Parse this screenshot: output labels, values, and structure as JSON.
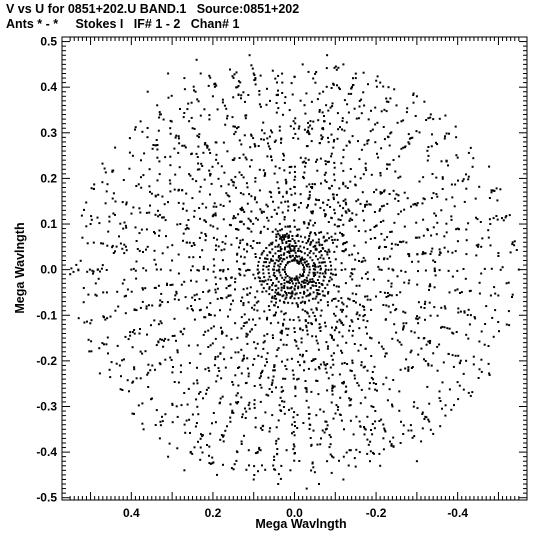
{
  "header": {
    "line1": "V vs U for 0851+202.U BAND.1   Source:0851+202",
    "line2": "Ants * - *     Stokes I   IF# 1 - 2   Chan# 1"
  },
  "chart_data": {
    "type": "scatter",
    "title": "V vs U for 0851+202.U BAND.1   Source:0851+202",
    "subtitle": "Ants * - *     Stokes I   IF# 1 - 2   Chan# 1",
    "xlabel": "Mega Wavlngth",
    "ylabel": "Mega Wavlngth",
    "xlim": [
      0.57,
      -0.57
    ],
    "ylim": [
      -0.505,
      0.51
    ],
    "x_ticks": [
      0.4,
      0.2,
      0.0,
      -0.2,
      -0.4
    ],
    "x_tick_labels": [
      "0.4",
      "0.2",
      "0.0",
      "-0.2",
      "-0.4"
    ],
    "y_ticks": [
      0.5,
      0.4,
      0.3,
      0.2,
      0.1,
      0.0,
      -0.1,
      -0.2,
      -0.3,
      -0.4,
      -0.5
    ],
    "y_tick_labels": [
      "0.5",
      "0.4",
      "0.3",
      "0.2",
      "0.1",
      "0.0",
      "-0.1",
      "-0.2",
      "-0.3",
      "-0.4",
      "-0.5"
    ],
    "grid": false,
    "marker_color": "#000000",
    "points": [
      [
        0.52,
        0.07
      ],
      [
        0.5,
        0.1
      ],
      [
        0.47,
        0.01
      ],
      [
        0.46,
        -0.05
      ],
      [
        0.44,
        0.04
      ],
      [
        0.4,
        0.0
      ],
      [
        0.38,
        0.08
      ],
      [
        0.53,
        0.0
      ],
      [
        0.55,
        -0.01
      ],
      [
        0.48,
        -0.02
      ],
      [
        0.42,
        0.09
      ],
      [
        0.36,
        0.05
      ],
      [
        0.34,
        -0.04
      ],
      [
        0.33,
        0.12
      ],
      [
        0.38,
        -0.14
      ],
      [
        0.44,
        0.12
      ],
      [
        0.3,
        0.02
      ],
      [
        0.28,
        0.1
      ],
      [
        -0.52,
        -0.03
      ],
      [
        -0.5,
        0.03
      ],
      [
        -0.47,
        -0.08
      ],
      [
        -0.45,
        0.05
      ],
      [
        -0.42,
        -0.02
      ],
      [
        -0.4,
        0.09
      ],
      [
        -0.38,
        -0.05
      ],
      [
        -0.36,
        0.13
      ],
      [
        -0.55,
        0.0
      ],
      [
        -0.48,
        0.1
      ],
      [
        -0.43,
        -0.12
      ],
      [
        -0.34,
        0.02
      ],
      [
        -0.32,
        -0.11
      ],
      [
        -0.3,
        0.07
      ],
      [
        -0.28,
        -0.03
      ],
      [
        -0.35,
        0.16
      ],
      [
        0.31,
        0.43
      ],
      [
        0.27,
        0.42
      ],
      [
        0.24,
        0.46
      ],
      [
        0.2,
        0.38
      ],
      [
        0.14,
        0.4
      ],
      [
        0.1,
        0.43
      ],
      [
        0.06,
        0.37
      ],
      [
        0.03,
        0.41
      ],
      [
        -0.02,
        0.45
      ],
      [
        -0.07,
        0.39
      ],
      [
        -0.12,
        0.45
      ],
      [
        -0.16,
        0.37
      ],
      [
        -0.21,
        0.41
      ],
      [
        -0.25,
        0.36
      ],
      [
        -0.3,
        0.38
      ],
      [
        -0.34,
        0.33
      ],
      [
        0.36,
        0.39
      ],
      [
        0.33,
        0.34
      ],
      [
        0.31,
        -0.41
      ],
      [
        0.27,
        -0.44
      ],
      [
        0.23,
        -0.39
      ],
      [
        0.19,
        -0.45
      ],
      [
        0.14,
        -0.4
      ],
      [
        0.1,
        -0.46
      ],
      [
        0.05,
        -0.41
      ],
      [
        0.01,
        -0.44
      ],
      [
        -0.03,
        -0.48
      ],
      [
        -0.08,
        -0.42
      ],
      [
        -0.12,
        -0.46
      ],
      [
        -0.16,
        -0.4
      ],
      [
        -0.21,
        -0.43
      ],
      [
        -0.26,
        -0.38
      ],
      [
        -0.3,
        -0.42
      ],
      [
        -0.34,
        -0.36
      ],
      [
        0.37,
        -0.35
      ],
      [
        0.33,
        -0.37
      ],
      [
        -0.37,
        -0.32
      ],
      [
        0.04,
        -0.47
      ],
      [
        -0.06,
        -0.47
      ],
      [
        0.11,
        0.47
      ],
      [
        -0.08,
        0.47
      ],
      [
        0.23,
        0.43
      ]
    ]
  }
}
